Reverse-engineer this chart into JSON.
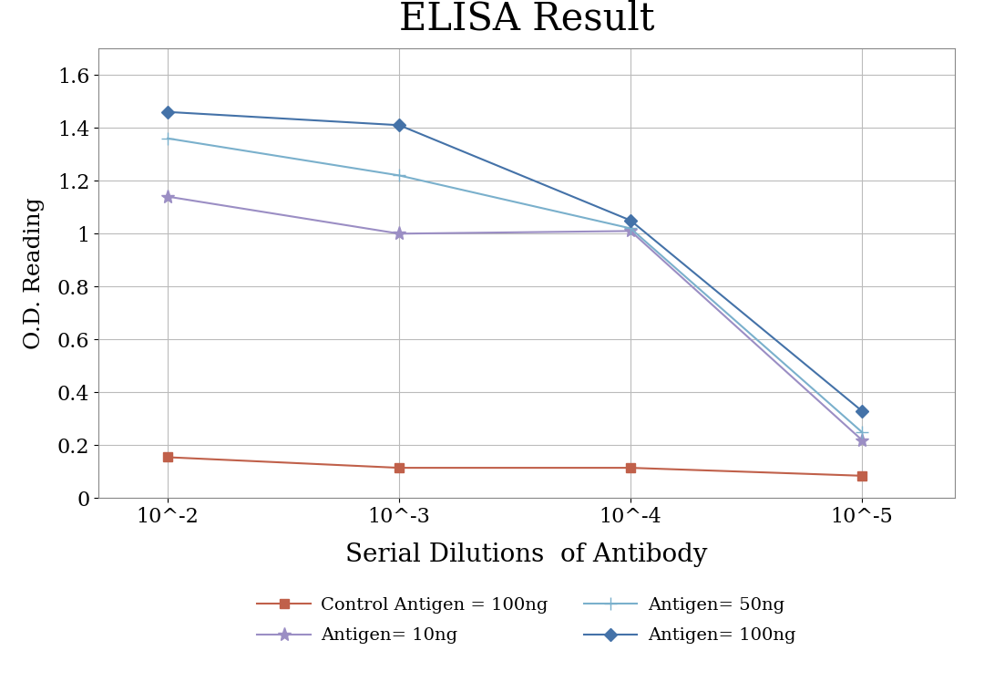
{
  "title": "ELISA Result",
  "xlabel": "Serial Dilutions  of Antibody",
  "ylabel": "O.D. Reading",
  "x_labels": [
    "10^-2",
    "10^-3",
    "10^-4",
    "10^-5"
  ],
  "x_positions": [
    1,
    2,
    3,
    4
  ],
  "series": [
    {
      "label": "Control Antigen = 100ng",
      "color": "#c0604a",
      "marker": "s",
      "markersize": 7,
      "values": [
        0.155,
        0.115,
        0.115,
        0.085
      ]
    },
    {
      "label": "Antigen= 10ng",
      "color": "#9b8ec4",
      "marker": "*",
      "markersize": 11,
      "values": [
        1.14,
        1.0,
        1.01,
        0.22
      ]
    },
    {
      "label": "Antigen= 50ng",
      "color": "#7ab0cc",
      "marker": "+",
      "markersize": 10,
      "values": [
        1.36,
        1.22,
        1.02,
        0.25
      ]
    },
    {
      "label": "Antigen= 100ng",
      "color": "#4472a8",
      "marker": "D",
      "markersize": 7,
      "values": [
        1.46,
        1.41,
        1.05,
        0.33
      ]
    }
  ],
  "ylim": [
    0,
    1.7
  ],
  "yticks": [
    0,
    0.2,
    0.4,
    0.6,
    0.8,
    1.0,
    1.2,
    1.4,
    1.6
  ],
  "background_color": "#ffffff",
  "title_fontsize": 30,
  "label_fontsize": 20,
  "tick_fontsize": 16,
  "legend_fontsize": 14,
  "grid_color": "#bbbbbb",
  "legend_order": [
    0,
    1,
    2,
    3
  ]
}
